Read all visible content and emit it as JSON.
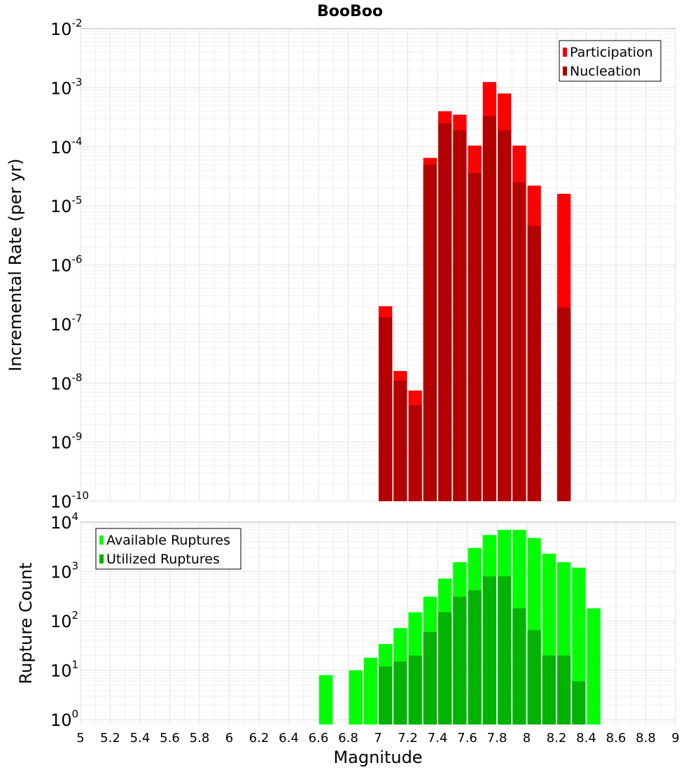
{
  "title": "BooBoo",
  "xlabel": "Magnitude",
  "x_ticks": [
    "5",
    "5.2",
    "5.4",
    "5.6",
    "5.8",
    "6",
    "6.2",
    "6.4",
    "6.6",
    "6.8",
    "7",
    "7.2",
    "7.4",
    "7.6",
    "7.8",
    "8",
    "8.2",
    "8.4",
    "8.6",
    "8.8",
    "9"
  ],
  "colors": {
    "participation": "#ff0000",
    "nucleation": "#b30000",
    "available": "#00ff00",
    "utilized": "#00b300"
  },
  "chart_data": [
    {
      "type": "bar",
      "ylabel": "Incremental Rate (per yr)",
      "yscale": "log",
      "ylim": [
        1e-10,
        0.01
      ],
      "xlim": [
        5,
        9
      ],
      "y_tick_exponents": [
        "-10",
        "-9",
        "-8",
        "-7",
        "-6",
        "-5",
        "-4",
        "-3",
        "-2"
      ],
      "legend_position": "top-right",
      "series": [
        {
          "name": "Participation",
          "x": [
            7.05,
            7.15,
            7.25,
            7.35,
            7.45,
            7.55,
            7.65,
            7.75,
            7.85,
            7.95,
            8.05,
            8.25
          ],
          "values": [
            2e-07,
            1.6e-08,
            7.5e-09,
            6.5e-05,
            0.0004,
            0.00035,
            0.000105,
            0.00125,
            0.0008,
            0.000105,
            2.2e-05,
            1.6e-05
          ]
        },
        {
          "name": "Nucleation",
          "x": [
            7.05,
            7.15,
            7.25,
            7.35,
            7.45,
            7.55,
            7.65,
            7.75,
            7.85,
            7.95,
            8.05,
            8.25
          ],
          "values": [
            1.3e-07,
            1.1e-08,
            4.2e-09,
            5e-05,
            0.00025,
            0.00019,
            3.6e-05,
            0.00033,
            0.00019,
            2.5e-05,
            4.6e-06,
            1.9e-07
          ]
        }
      ]
    },
    {
      "type": "bar",
      "ylabel": "Rupture Count",
      "yscale": "log",
      "ylim": [
        0.8,
        10000
      ],
      "xlim": [
        5,
        9
      ],
      "y_tick_exponents": [
        "0",
        "1",
        "2",
        "3",
        "4"
      ],
      "legend_position": "top-left",
      "series": [
        {
          "name": "Available Ruptures",
          "x": [
            6.65,
            6.85,
            6.95,
            7.05,
            7.15,
            7.25,
            7.35,
            7.45,
            7.55,
            7.65,
            7.75,
            7.85,
            7.95,
            8.05,
            8.15,
            8.25,
            8.35,
            8.45
          ],
          "values": [
            8,
            10,
            18,
            34,
            72,
            150,
            310,
            720,
            1550,
            3000,
            5500,
            7000,
            7000,
            4800,
            2300,
            1550,
            1200,
            180
          ]
        },
        {
          "name": "Utilized Ruptures",
          "x": [
            7.05,
            7.15,
            7.25,
            7.35,
            7.45,
            7.55,
            7.65,
            7.75,
            7.85,
            7.95,
            8.05,
            8.15,
            8.25,
            8.35
          ],
          "values": [
            12,
            15,
            20,
            60,
            150,
            310,
            420,
            800,
            800,
            180,
            65,
            20,
            20,
            6
          ]
        }
      ]
    }
  ]
}
